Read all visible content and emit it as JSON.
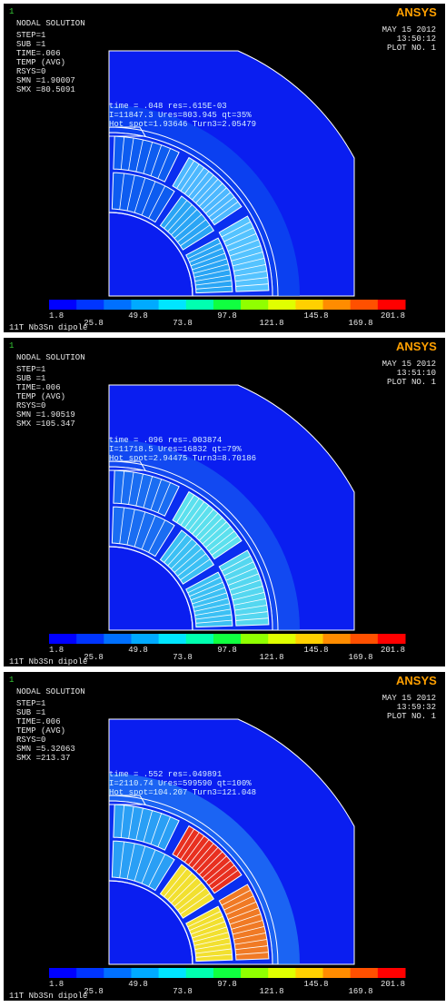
{
  "panels": [
    {
      "window_number": "1",
      "title": "NODAL SOLUTION",
      "info": [
        "STEP=1",
        "SUB =1",
        "TIME=.006",
        "TEMP      (AVG)",
        "RSYS=0",
        "SMN =1.90007",
        "SMX =80.5091"
      ],
      "date": "MAY 15 2012",
      "time": "13:50:12",
      "plot_no": "PLOT NO.   1",
      "overlay": [
        "time = .048 res=.615E-03",
        "I=11847.3 Ures=803.945 qt=35%",
        "Hot spot=1.93646 Turn3=2.05479"
      ],
      "footer": "11T Nb3Sn dipole",
      "inner_block_color": "#4db8ff",
      "outer_block_color": "#55c3ff",
      "mid_block_color": "#2aa5f5",
      "wedge_color": "#0d5cf0"
    },
    {
      "window_number": "1",
      "title": "NODAL SOLUTION",
      "info": [
        "STEP=1",
        "SUB =1",
        "TIME=.006",
        "TEMP      (AVG)",
        "RSYS=0",
        "SMN =1.90519",
        "SMX =105.347"
      ],
      "date": "MAY 15 2012",
      "time": "13:51:10",
      "plot_no": "PLOT NO.   1",
      "overlay": [
        "time = .096 res=.003874",
        "I=11718.5 Ures=16832 qt=79%",
        "Hot spot=2.94475 Turn3=8.70186"
      ],
      "footer": "11T Nb3Sn dipole",
      "inner_block_color": "#5ce0ee",
      "outer_block_color": "#55d7f0",
      "mid_block_color": "#3cc0f4",
      "wedge_color": "#1a6df2"
    },
    {
      "window_number": "1",
      "title": "NODAL SOLUTION",
      "info": [
        "STEP=1",
        "SUB =1",
        "TIME=.006",
        "TEMP      (AVG)",
        "RSYS=0",
        "SMN =5.32063",
        "SMX =213.37"
      ],
      "date": "MAY 15 2012",
      "time": "13:59:32",
      "plot_no": "PLOT NO.   1",
      "overlay": [
        "time = .552 res=.049891",
        "I=2110.74 Ures=599590 qt=100%",
        "Hot spot=104.207 Turn3=121.048"
      ],
      "footer": "11T Nb3Sn dipole",
      "inner_block_color": "#e83020",
      "outer_block_color": "#f07a25",
      "mid_block_color": "#f2e030",
      "wedge_color": "#2a9ff5"
    }
  ],
  "legend": {
    "lower_labels": [
      "1.8",
      "49.8",
      "97.8",
      "145.8",
      "201.8"
    ],
    "upper_labels": [
      "25.8",
      "73.8",
      "121.8",
      "169.8"
    ],
    "colors": [
      "#0000ff",
      "#0035ff",
      "#0070ff",
      "#00aaff",
      "#00e5ff",
      "#00ffb0",
      "#10ff40",
      "#90ff00",
      "#e0ff00",
      "#ffd000",
      "#ff8c00",
      "#ff5000",
      "#ff0000"
    ]
  },
  "brand": {
    "text": "ANSYS",
    "color_a": "#ffa000",
    "color_b": "#ffffff"
  }
}
